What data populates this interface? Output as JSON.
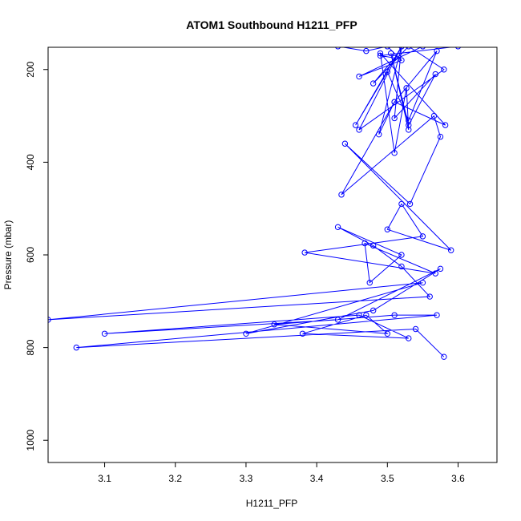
{
  "chart_data": {
    "type": "line",
    "title": "ATOM1 Southbound H1211_PFP",
    "xlabel": "H1211_PFP",
    "ylabel": "Pressure (mbar)",
    "xlim": [
      3.02,
      3.655
    ],
    "ylim": [
      1048,
      152
    ],
    "y_reversed": true,
    "x_ticks": [
      "3.1",
      "3.2",
      "3.3",
      "3.4",
      "3.5",
      "3.6"
    ],
    "y_ticks": [
      "200",
      "400",
      "600",
      "800",
      "1000"
    ],
    "grid": false,
    "legend": "none",
    "colors": {
      "series": "#0000ff",
      "axis": "#000000"
    },
    "marker": "open-circle",
    "series": [
      {
        "x": [
          3.43,
          3.47,
          3.5,
          3.52,
          3.46,
          3.55,
          3.6,
          3.49,
          3.51,
          3.48,
          3.53,
          3.58,
          3.46,
          3.52,
          3.455,
          3.5,
          3.53,
          3.57,
          3.51,
          3.488,
          3.52,
          3.51,
          3.568,
          3.53,
          3.505,
          3.53,
          3.527,
          3.51,
          3.49,
          3.582,
          3.51,
          3.435,
          3.566,
          3.575,
          3.532,
          3.44,
          3.59,
          3.5,
          3.52,
          3.55,
          3.383,
          3.568,
          3.468,
          3.475,
          3.52,
          3.43,
          3.48,
          3.52,
          3.56,
          3.02,
          3.55,
          3.3,
          3.48,
          3.575,
          3.43,
          3.1,
          3.46,
          3.53,
          3.38,
          3.47,
          3.5,
          3.34,
          3.51,
          3.57,
          3.06,
          3.54,
          3.58
        ],
        "y": [
          150,
          160,
          150,
          180,
          215,
          150,
          150,
          170,
          175,
          230,
          150,
          200,
          330,
          150,
          320,
          205,
          310,
          160,
          270,
          340,
          150,
          305,
          210,
          320,
          165,
          330,
          240,
          380,
          165,
          320,
          270,
          470,
          300,
          345,
          490,
          360,
          590,
          545,
          490,
          560,
          595,
          640,
          575,
          660,
          600,
          540,
          580,
          625,
          690,
          740,
          660,
          770,
          720,
          630,
          740,
          770,
          730,
          780,
          770,
          730,
          770,
          750,
          730,
          730,
          800,
          760,
          820
        ]
      }
    ]
  }
}
